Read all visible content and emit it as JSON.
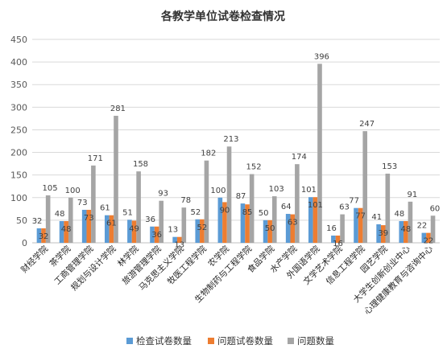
{
  "chart_data": {
    "type": "bar",
    "title": "各教学单位试卷检查情况",
    "xlabel": "",
    "ylabel": "",
    "ylim": [
      0,
      450
    ],
    "yticks": [
      0,
      50,
      100,
      150,
      200,
      250,
      300,
      350,
      400,
      450
    ],
    "grid": true,
    "legend_position": "bottom",
    "categories": [
      "财经学院",
      "茶学院",
      "工商管理学院",
      "规划与设计学院",
      "林学院",
      "旅游管理学院",
      "马克思主义学院",
      "牧医工程学院",
      "农学院",
      "生物制药与工程学院",
      "食品学院",
      "水产学院",
      "外国语学院",
      "文学艺术学院",
      "信息工程学院",
      "园艺学院",
      "大学生创新创业中心",
      "心理健康教育与咨询中心"
    ],
    "series": [
      {
        "name": "检查试卷数量",
        "color": "#5B9BD5",
        "values": [
          32,
          48,
          73,
          61,
          51,
          36,
          13,
          52,
          100,
          87,
          50,
          64,
          101,
          16,
          77,
          41,
          48,
          22
        ]
      },
      {
        "name": "问题试卷数量",
        "color": "#ED7D31",
        "values": [
          32,
          48,
          73,
          61,
          49,
          36,
          13,
          52,
          90,
          85,
          50,
          63,
          101,
          16,
          77,
          39,
          48,
          22
        ]
      },
      {
        "name": "问题数量",
        "color": "#A5A5A5",
        "values": [
          105,
          100,
          171,
          281,
          158,
          93,
          78,
          182,
          213,
          152,
          103,
          174,
          396,
          63,
          247,
          153,
          91,
          60
        ]
      }
    ]
  }
}
